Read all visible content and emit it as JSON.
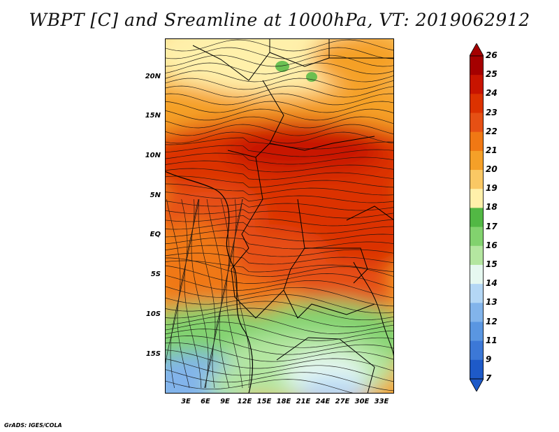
{
  "title": "WBPT [C] and Sreamline at 1000hPa, VT: 2019062912",
  "credit": "GrADS: IGES/COLA",
  "map": {
    "lon_labels": [
      "3E",
      "6E",
      "9E",
      "12E",
      "15E",
      "18E",
      "21E",
      "24E",
      "27E",
      "30E",
      "33E"
    ],
    "lat_labels": [
      "20N",
      "15N",
      "10N",
      "5N",
      "EQ",
      "5S",
      "10S",
      "15S"
    ]
  },
  "colorbar": {
    "labels": [
      "26",
      "25",
      "24",
      "23",
      "22",
      "21",
      "20",
      "19",
      "18",
      "17",
      "16",
      "15",
      "14",
      "13",
      "12",
      "11",
      "9",
      "7"
    ],
    "colors": [
      "#a50000",
      "#c81400",
      "#dc3200",
      "#e65014",
      "#f07814",
      "#f5a028",
      "#fac864",
      "#fff0aa",
      "#52b844",
      "#82d26e",
      "#b4e6a0",
      "#e6f8f0",
      "#b4d7f5",
      "#82b4eb",
      "#5a96e1",
      "#3c78d7",
      "#1e5ac8"
    ]
  },
  "colors": {
    "hot": "#d23c0a",
    "warm": "#f09628",
    "cool_green": "#82d26e",
    "cold_blue": "#82b4eb"
  }
}
